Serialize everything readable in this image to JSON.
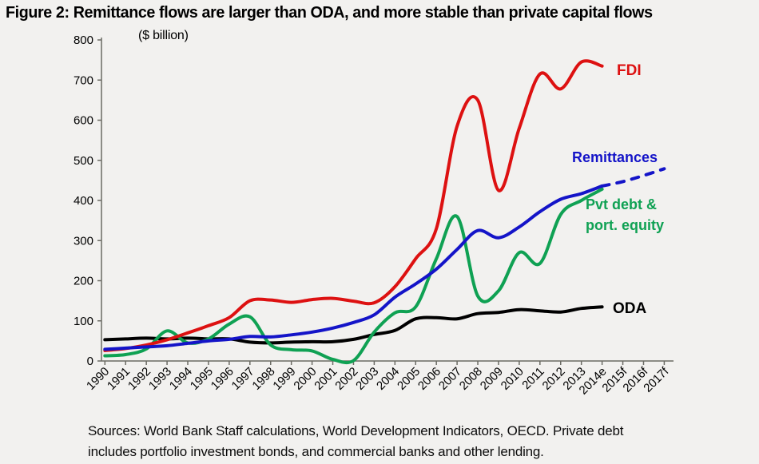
{
  "title": "Figure 2: Remittance flows are larger than ODA, and more stable than private capital flows",
  "units_label": "($ billion)",
  "source_note": {
    "line1": "Sources: World Bank Staff calculations, World Development Indicators, OECD. Private debt",
    "line2": "includes portfolio investment bonds, and commercial banks and other lending."
  },
  "colors": {
    "fdi": "#dd1111",
    "remittances": "#1414c8",
    "pvt_debt": "#0fa153",
    "oda": "#000000",
    "axis": "#6b6b64",
    "background": "#f2f1ef"
  },
  "chart_data": {
    "type": "line",
    "title": "Figure 2: Remittance flows are larger than ODA, and more stable than private capital flows",
    "ylabel": "($ billion)",
    "xlabel": "",
    "ylim": [
      0,
      800
    ],
    "grid": false,
    "legend_position": "inline-annotations",
    "y_ticks": [
      0,
      100,
      200,
      300,
      400,
      500,
      600,
      700,
      800
    ],
    "categories": [
      "1990",
      "1991",
      "1992",
      "1993",
      "1994",
      "1995",
      "1996",
      "1997",
      "1998",
      "1999",
      "2000",
      "2001",
      "2002",
      "2003",
      "2004",
      "2005",
      "2006",
      "2007",
      "2008",
      "2009",
      "2010",
      "2011",
      "2012",
      "2013",
      "2014e",
      "2015f",
      "2016f",
      "2017f"
    ],
    "series": [
      {
        "id": "oda",
        "name": "ODA",
        "color": "#000000",
        "style": "solid",
        "values": [
          53,
          55,
          57,
          55,
          57,
          55,
          55,
          47,
          45,
          47,
          48,
          48,
          54,
          66,
          76,
          105,
          108,
          105,
          118,
          121,
          128,
          125,
          122,
          131,
          135,
          null,
          null,
          null
        ]
      },
      {
        "id": "pvt-debt-port-equity",
        "name": "Pvt debt & port. equity",
        "color": "#0fa153",
        "style": "solid",
        "values": [
          13,
          16,
          30,
          75,
          45,
          55,
          92,
          110,
          40,
          28,
          25,
          4,
          1,
          72,
          120,
          135,
          255,
          360,
          162,
          175,
          270,
          243,
          365,
          400,
          428,
          null,
          null,
          null
        ]
      },
      {
        "id": "fdi",
        "name": "FDI",
        "color": "#dd1111",
        "style": "solid",
        "values": [
          26,
          31,
          40,
          53,
          70,
          88,
          108,
          150,
          152,
          146,
          153,
          156,
          149,
          145,
          185,
          255,
          330,
          585,
          650,
          425,
          580,
          715,
          678,
          745,
          735,
          null,
          null,
          null
        ]
      },
      {
        "id": "remittances",
        "name": "Remittances",
        "color": "#1414c8",
        "style": "solid",
        "values": [
          29,
          32,
          35,
          38,
          44,
          50,
          54,
          61,
          60,
          65,
          72,
          82,
          96,
          115,
          159,
          192,
          229,
          278,
          325,
          307,
          334,
          372,
          403,
          417,
          436,
          null,
          null,
          null
        ]
      },
      {
        "id": "remittances-forecast",
        "name": "Remittances (forecast)",
        "color": "#1414c8",
        "style": "dashed",
        "values": [
          null,
          null,
          null,
          null,
          null,
          null,
          null,
          null,
          null,
          null,
          null,
          null,
          null,
          null,
          null,
          null,
          null,
          null,
          null,
          null,
          null,
          null,
          null,
          null,
          436,
          447,
          462,
          479
        ]
      }
    ],
    "annotations": [
      {
        "id": "fdi-label",
        "text": "FDI",
        "color": "#dd1111",
        "x": 772,
        "y": 94,
        "size": 19
      },
      {
        "id": "remittances-label",
        "text": "Remittances",
        "color": "#1414c8",
        "x": 716,
        "y": 203,
        "size": 18
      },
      {
        "id": "pvt-debt-label-line1",
        "text": "Pvt debt &",
        "color": "#0fa153",
        "x": 733,
        "y": 262,
        "size": 18
      },
      {
        "id": "pvt-debt-label-line2",
        "text": "port. equity",
        "color": "#0fa153",
        "x": 733,
        "y": 288,
        "size": 18
      },
      {
        "id": "oda-label",
        "text": "ODA",
        "color": "#000000",
        "x": 767,
        "y": 392,
        "size": 19
      }
    ]
  }
}
